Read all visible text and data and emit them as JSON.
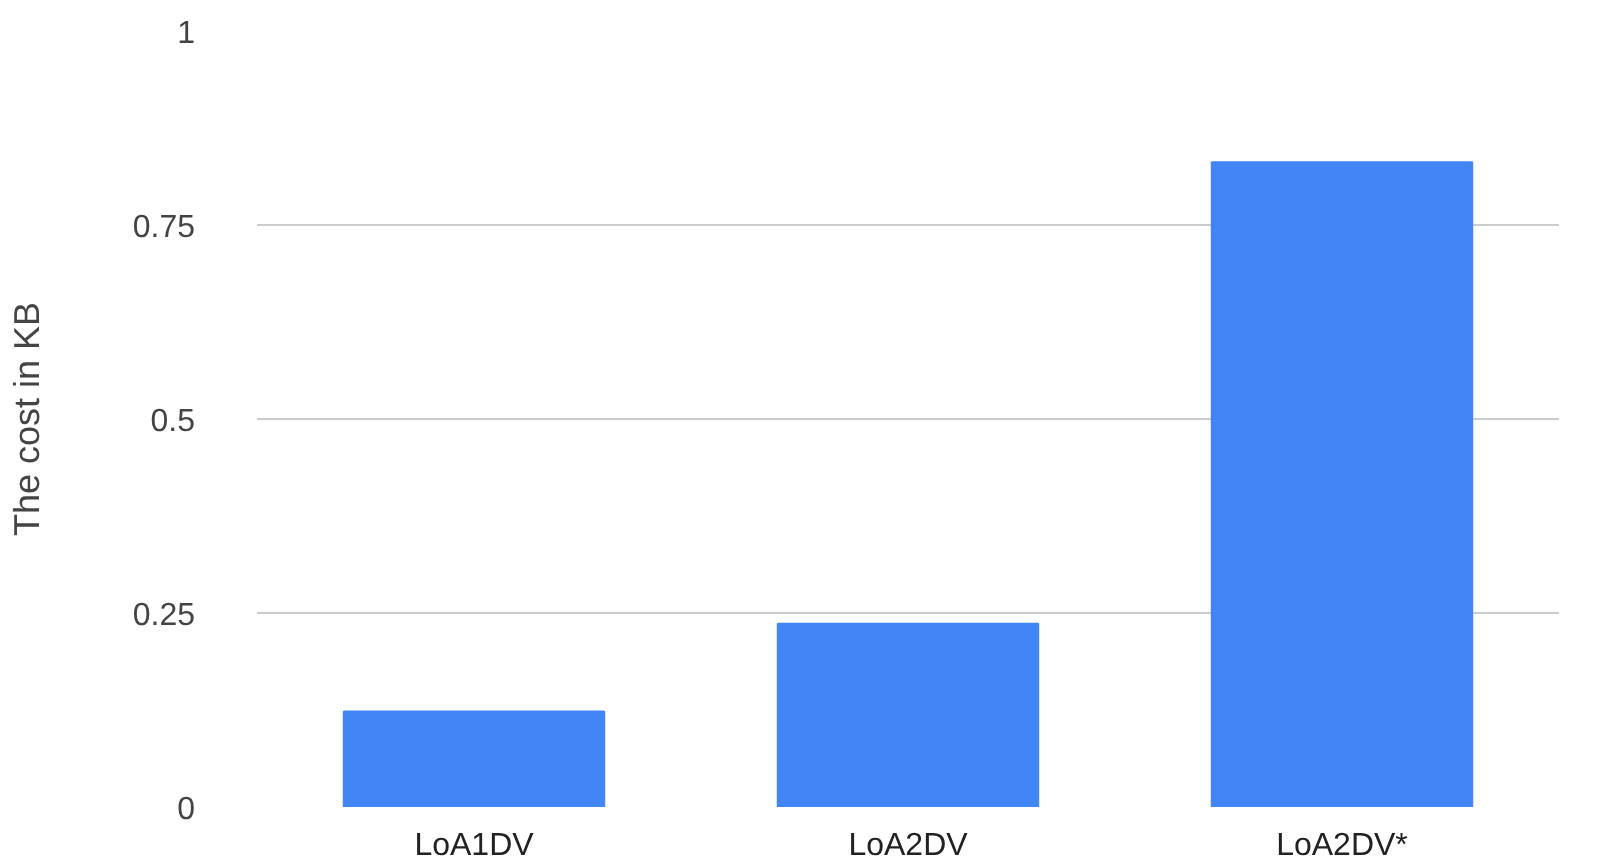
{
  "chart_data": {
    "type": "bar",
    "ylabel": "The cost in KB",
    "categories": [
      "LoA1DV",
      "LoA2DV",
      "LoA2DV*"
    ],
    "values": [
      0.123,
      0.236,
      0.831
    ],
    "color": "#4285f4",
    "ylim": [
      0,
      1
    ],
    "yticks": [
      0,
      0.25,
      0.5,
      0.75,
      1
    ],
    "grid": "y"
  }
}
